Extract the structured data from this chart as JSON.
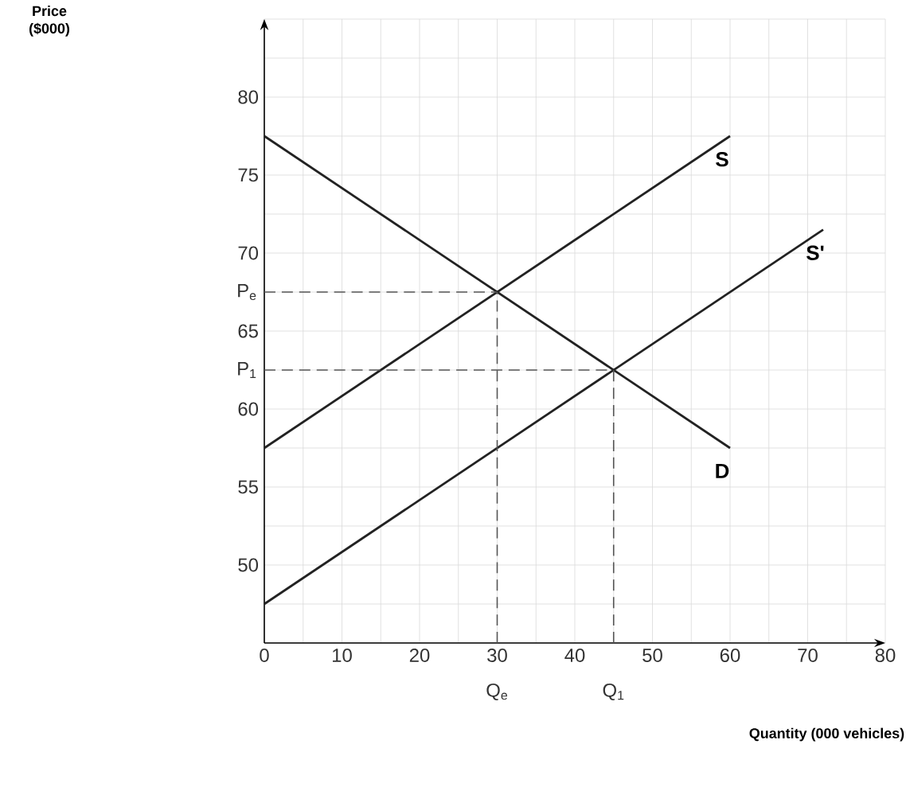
{
  "chart_data": {
    "type": "line",
    "xlabel": "Quantity (000 vehicles)",
    "xlim": [
      0,
      80
    ],
    "ylim": [
      45,
      85
    ],
    "xticks": [
      0,
      10,
      20,
      30,
      40,
      50,
      60,
      70,
      80
    ],
    "yticks": [
      50,
      55,
      60,
      65,
      70,
      75,
      80
    ],
    "annotations": [
      "Price ($000)",
      {
        "text": "P$_{e}$",
        "x": 0,
        "y": 67.5
      },
      {
        "text": "P$_{1}$",
        "x": 0,
        "y": 62.5
      },
      {
        "text": "Q$_{e}$",
        "x": 30,
        "y": 45
      },
      {
        "text": "Q$_{1}$",
        "x": 45,
        "y": 45
      }
    ],
    "grid": true,
    "legend": false,
    "marker": "none",
    "series": [
      {
        "name": "S",
        "color": "#222222",
        "x": [
          0,
          60
        ],
        "values": [
          57.5,
          77.5
        ]
      },
      {
        "name": "S'",
        "color": "#222222",
        "x": [
          0,
          72
        ],
        "values": [
          47.5,
          71.5
        ]
      },
      {
        "name": "D",
        "color": "#222222",
        "x": [
          0,
          60
        ],
        "values": [
          77.5,
          57.5
        ]
      },
      {
        "color": "#555555",
        "line_style": "dashed",
        "x": [
          0,
          30
        ],
        "values": [
          67.5,
          67.5
        ]
      },
      {
        "color": "#555555",
        "line_style": "dashed",
        "x": [
          30,
          30
        ],
        "values": [
          45,
          67.5
        ]
      },
      {
        "color": "#555555",
        "line_style": "dashed",
        "x": [
          0,
          45
        ],
        "values": [
          62.5,
          62.5
        ]
      },
      {
        "color": "#555555",
        "line_style": "dashed",
        "x": [
          45,
          45
        ],
        "values": [
          45,
          62.5
        ]
      }
    ]
  }
}
